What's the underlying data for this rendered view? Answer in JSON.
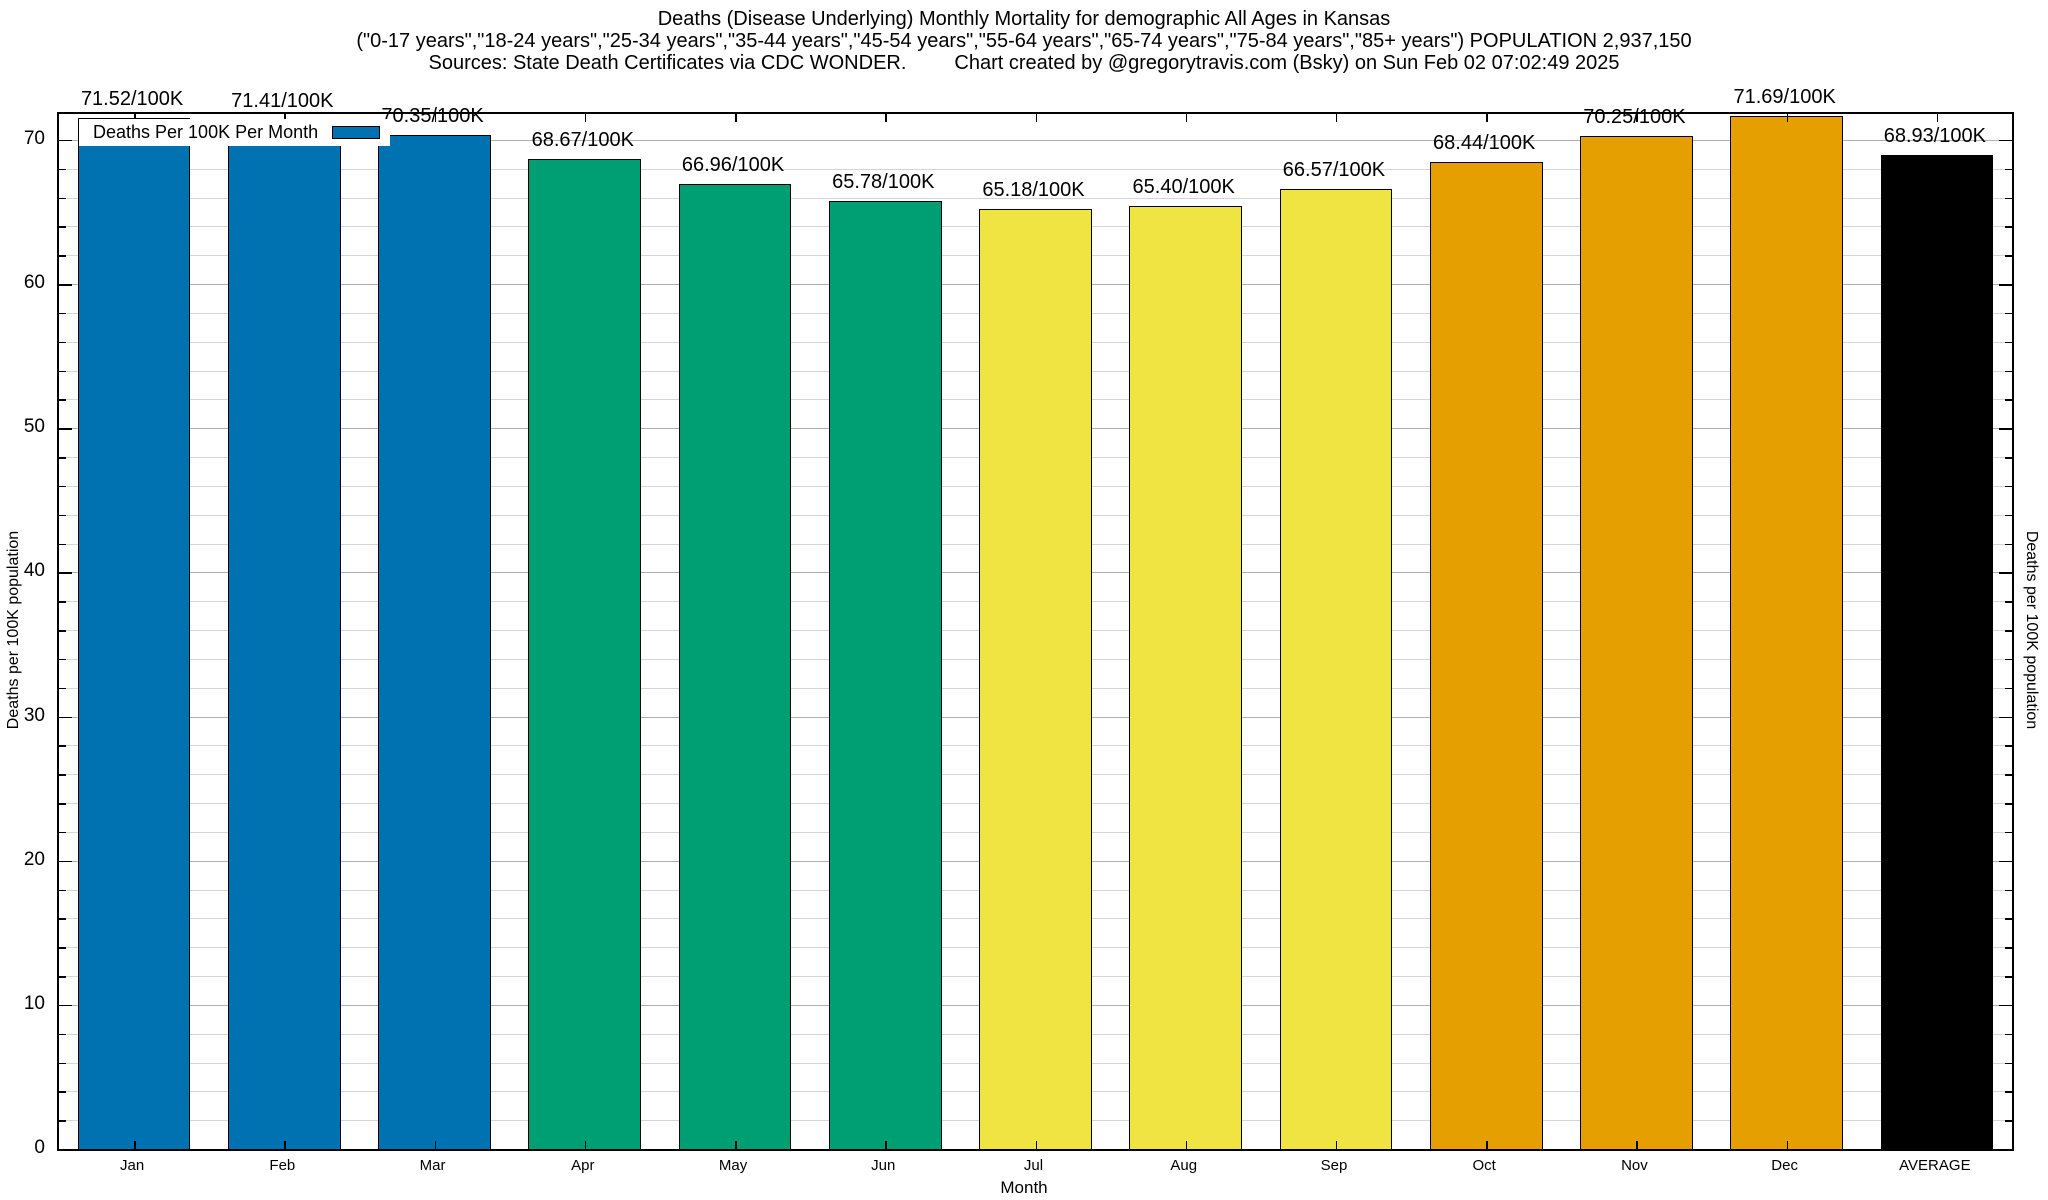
{
  "title": {
    "line1": "Deaths (Disease Underlying) Monthly Mortality for demographic All Ages in Kansas",
    "line2": "(\"0-17 years\",\"18-24 years\",\"25-34 years\",\"35-44 years\",\"45-54 years\",\"55-64 years\",\"65-74 years\",\"75-84 years\",\"85+ years\") POPULATION 2,937,150",
    "sources": "Sources: State Death Certificates via CDC WONDER.",
    "credit": "Chart created by @gregorytravis.com (Bsky) on Sun Feb 02 07:02:49 2025"
  },
  "legend": {
    "label": "Deaths Per 100K Per Month",
    "swatch_color": "#0072B2"
  },
  "axes": {
    "y_left_label": "Deaths per 100K population",
    "y_right_label": "Deaths per 100K population",
    "x_label": "Month",
    "y_ticks": [
      0,
      10,
      20,
      30,
      40,
      50,
      60,
      70
    ],
    "y_minor_step": 2,
    "y_max": 71.8
  },
  "colors": {
    "q1_blue": "#0072B2",
    "q2_green": "#009E73",
    "q3_yellow": "#F0E442",
    "q4_orange": "#E69F00",
    "average_black": "#000000",
    "grid_major": "#b0b0b0",
    "grid_minor": "#d4d4d4"
  },
  "chart_data": {
    "type": "bar",
    "title": "Deaths (Disease Underlying) Monthly Mortality for demographic All Ages in Kansas",
    "xlabel": "Month",
    "ylabel": "Deaths per 100K population",
    "ylim": [
      0,
      71.8
    ],
    "grid": "horizontal-major-and-minor",
    "legend_position": "top-left",
    "legend_entry": "Deaths Per 100K Per Month",
    "categories": [
      "Jan",
      "Feb",
      "Mar",
      "Apr",
      "May",
      "Jun",
      "Jul",
      "Aug",
      "Sep",
      "Oct",
      "Nov",
      "Dec",
      "AVERAGE"
    ],
    "values": [
      71.52,
      71.41,
      70.35,
      68.67,
      66.96,
      65.78,
      65.18,
      65.4,
      66.57,
      68.44,
      70.25,
      71.69,
      68.93
    ],
    "bar_labels": [
      "71.52/100K",
      "71.41/100K",
      "70.35/100K",
      "68.67/100K",
      "66.96/100K",
      "65.78/100K",
      "65.18/100K",
      "65.40/100K",
      "66.57/100K",
      "68.44/100K",
      "70.25/100K",
      "71.69/100K",
      "68.93/100K"
    ],
    "bar_colors": [
      "#0072B2",
      "#0072B2",
      "#0072B2",
      "#009E73",
      "#009E73",
      "#009E73",
      "#F0E442",
      "#F0E442",
      "#F0E442",
      "#E69F00",
      "#E69F00",
      "#E69F00",
      "#000000"
    ]
  }
}
